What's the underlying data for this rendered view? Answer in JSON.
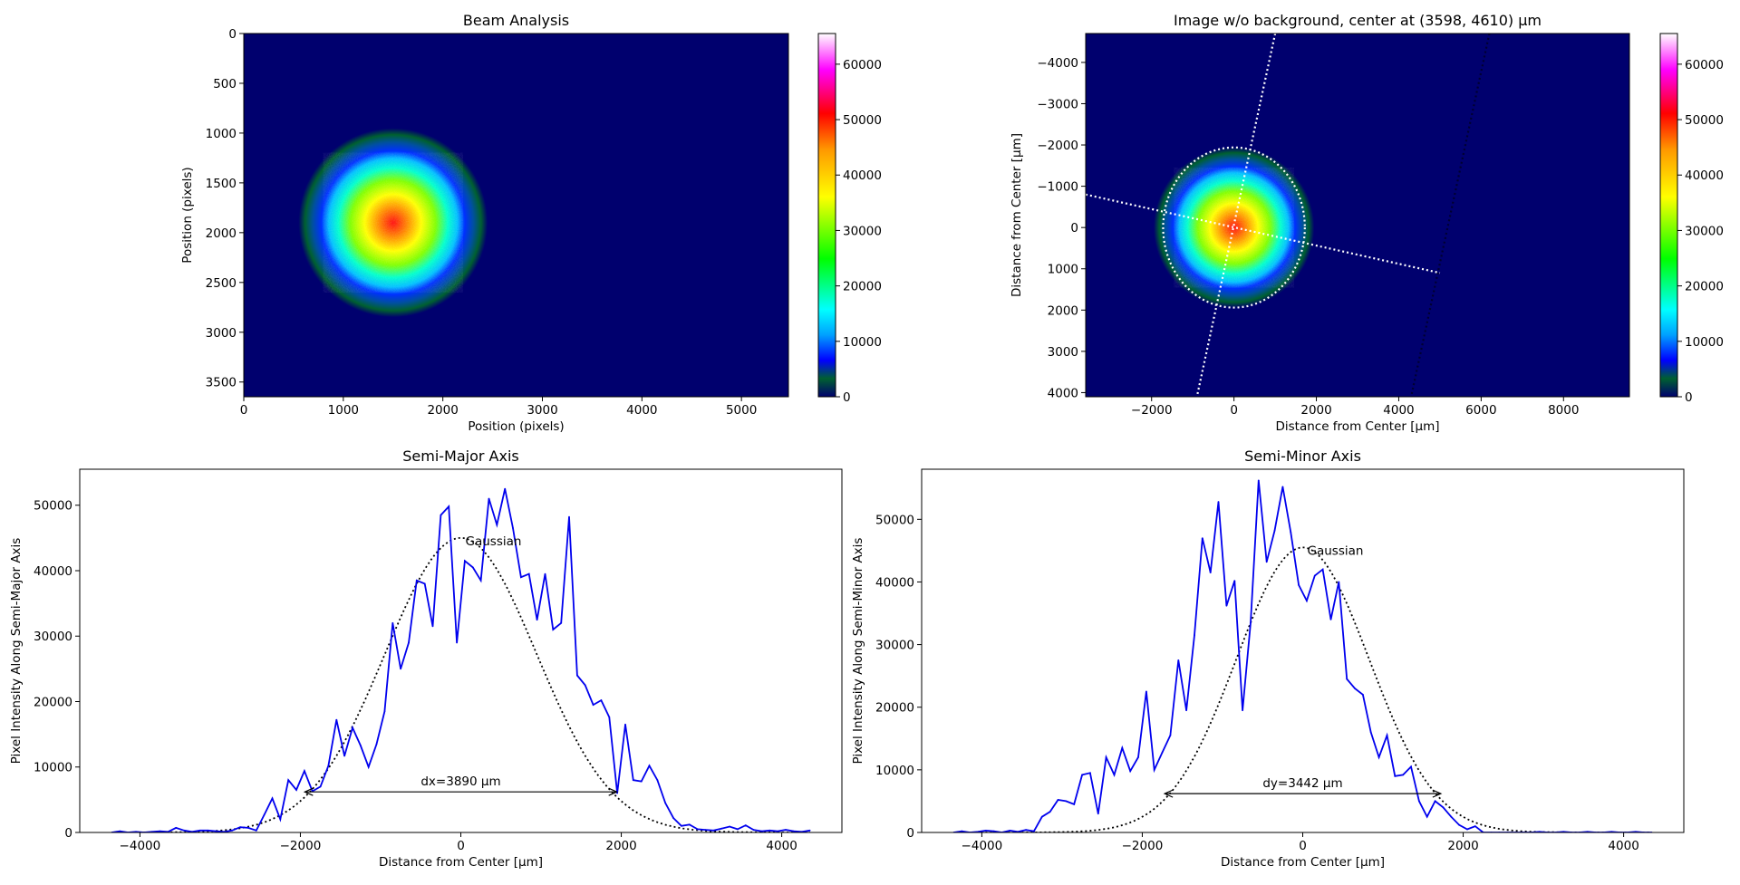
{
  "colors": {
    "profile_line": "#0000ee",
    "gaussian_line": "#000000",
    "image_background": "#00006e",
    "colormap": [
      "#00006e",
      "#006030",
      "#0000ff",
      "#00ffff",
      "#00ff00",
      "#ffff00",
      "#ff9900",
      "#ff0000",
      "#ff00ff",
      "#ffffff"
    ]
  },
  "chart_data": [
    {
      "id": "beam_analysis",
      "type": "heatmap",
      "title": "Beam Analysis",
      "xlabel": "Position (pixels)",
      "ylabel": "Position (pixels)",
      "xlim": [
        0,
        5472
      ],
      "ylim": [
        3648,
        0
      ],
      "xticks": [
        0,
        1000,
        2000,
        3000,
        4000,
        5000
      ],
      "yticks": [
        0,
        500,
        1000,
        1500,
        2000,
        2500,
        3000,
        3500
      ],
      "beam": {
        "center": [
          1500,
          1900
        ],
        "outer_radius": 950,
        "core_radius": 700
      },
      "colorbar": {
        "range": [
          0,
          65535
        ],
        "ticks": [
          0,
          10000,
          20000,
          30000,
          40000,
          50000,
          60000
        ]
      }
    },
    {
      "id": "image_no_background",
      "type": "heatmap",
      "title": "Image w/o background, center at (3598, 4610) µm",
      "xlabel": "Distance from Center [µm]",
      "ylabel": "Distance from Center [µm]",
      "xlim": [
        -3600,
        9600
      ],
      "ylim": [
        4100,
        -4700
      ],
      "xticks": [
        -2000,
        0,
        2000,
        4000,
        6000,
        8000
      ],
      "yticks": [
        -4000,
        -3000,
        -2000,
        -1000,
        0,
        1000,
        2000,
        3000,
        4000
      ],
      "beam": {
        "center": [
          0,
          0
        ],
        "outer_radius": 1950,
        "core_radius": 1450
      },
      "ellipse": {
        "rx": 1720,
        "ry": 1940
      },
      "lines": [
        {
          "from": [
            1000,
            -4700
          ],
          "to": [
            -900,
            4100
          ]
        },
        {
          "from": [
            -3600,
            -800
          ],
          "to": [
            5000,
            1100
          ]
        },
        {
          "from": [
            6200,
            -4700
          ],
          "to": [
            4300,
            4100
          ]
        }
      ],
      "colorbar": {
        "range": [
          0,
          65535
        ],
        "ticks": [
          0,
          10000,
          20000,
          30000,
          40000,
          50000,
          60000
        ]
      }
    },
    {
      "id": "semi_major",
      "type": "line",
      "title": "Semi-Major Axis",
      "xlabel": "Distance from Center [µm]",
      "ylabel": "Pixel Intensity Along Semi-Major Axis",
      "xlim": [
        -4750,
        4750
      ],
      "ylim": [
        0,
        55500
      ],
      "xticks": [
        -4000,
        -2000,
        0,
        2000,
        4000
      ],
      "yticks": [
        0,
        10000,
        20000,
        30000,
        40000,
        50000
      ],
      "x": [
        -4350,
        -4250,
        -4150,
        -4050,
        -3950,
        -3850,
        -3750,
        -3650,
        -3550,
        -3450,
        -3350,
        -3250,
        -3150,
        -3050,
        -2950,
        -2850,
        -2750,
        -2650,
        -2550,
        -2450,
        -2350,
        -2250,
        -2150,
        -2050,
        -1950,
        -1850,
        -1750,
        -1650,
        -1550,
        -1450,
        -1350,
        -1250,
        -1150,
        -1050,
        -950,
        -850,
        -750,
        -650,
        -550,
        -450,
        -350,
        -250,
        -150,
        -50,
        50,
        150,
        250,
        350,
        450,
        550,
        650,
        750,
        850,
        950,
        1050,
        1150,
        1250,
        1350,
        1450,
        1550,
        1650,
        1750,
        1850,
        1950,
        2050,
        2150,
        2250,
        2350,
        2450,
        2550,
        2650,
        2750,
        2850,
        2950,
        3050,
        3150,
        3250,
        3350,
        3450,
        3550,
        3650,
        3750,
        3850,
        3950,
        4050,
        4150,
        4250,
        4350
      ],
      "series": [
        {
          "values": [
            0,
            200,
            0,
            100,
            0,
            100,
            200,
            100,
            700,
            300,
            100,
            300,
            300,
            200,
            100,
            300,
            800,
            700,
            300,
            2700,
            5200,
            2000,
            8000,
            6500,
            9400,
            6300,
            7000,
            10200,
            17200,
            11700,
            16000,
            13300,
            10000,
            13500,
            18500,
            32000,
            25000,
            29000,
            38500,
            38000,
            31500,
            48500,
            49800,
            29000,
            41500,
            40500,
            38500,
            51000,
            47000,
            52500,
            46500,
            39000,
            39500,
            32500,
            39500,
            31000,
            32000,
            48200,
            24000,
            22500,
            19500,
            20200,
            17600,
            6000,
            16500,
            8000,
            7800,
            10200,
            8000,
            4500,
            2200,
            1000,
            1200,
            500,
            400,
            300,
            600,
            900,
            500,
            1100,
            400,
            200,
            300,
            200,
            400,
            200,
            100,
            300
          ]
        }
      ],
      "gaussian": {
        "amplitude": 45000,
        "center": 0,
        "sigma": 945
      },
      "gaussian_label": "Gaussian",
      "annotation": {
        "text": "dx=3890 µm",
        "x1": -1945,
        "x2": 1945,
        "y": 6200
      }
    },
    {
      "id": "semi_minor",
      "type": "line",
      "title": "Semi-Minor Axis",
      "xlabel": "Distance from Center [µm]",
      "ylabel": "Pixel Intensity Along Semi-Minor Axis",
      "xlim": [
        -4750,
        4750
      ],
      "ylim": [
        0,
        58000
      ],
      "xticks": [
        -4000,
        -2000,
        0,
        2000,
        4000
      ],
      "yticks": [
        0,
        10000,
        20000,
        30000,
        40000,
        50000
      ],
      "x": [
        -4350,
        -4250,
        -4150,
        -4050,
        -3950,
        -3850,
        -3750,
        -3650,
        -3550,
        -3450,
        -3350,
        -3250,
        -3150,
        -3050,
        -2950,
        -2850,
        -2750,
        -2650,
        -2550,
        -2450,
        -2350,
        -2250,
        -2150,
        -2050,
        -1950,
        -1850,
        -1750,
        -1650,
        -1550,
        -1450,
        -1350,
        -1250,
        -1150,
        -1050,
        -950,
        -850,
        -750,
        -650,
        -550,
        -450,
        -350,
        -250,
        -150,
        -50,
        50,
        150,
        250,
        350,
        450,
        550,
        650,
        750,
        850,
        950,
        1050,
        1150,
        1250,
        1350,
        1450,
        1550,
        1650,
        1750,
        1850,
        1950,
        2050,
        2150,
        2250,
        2350,
        2450,
        2550,
        2650,
        2750,
        2850,
        2950,
        3050,
        3150,
        3250,
        3350,
        3450,
        3550,
        3650,
        3750,
        3850,
        3950,
        4050,
        4150,
        4250,
        4350
      ],
      "series": [
        {
          "values": [
            0,
            200,
            0,
            100,
            300,
            200,
            0,
            300,
            100,
            400,
            200,
            2500,
            3300,
            5200,
            5000,
            4500,
            9200,
            9500,
            3000,
            12000,
            9200,
            13500,
            9800,
            12000,
            22500,
            10000,
            12800,
            15500,
            27500,
            19500,
            31500,
            47000,
            41500,
            52800,
            36200,
            40200,
            19500,
            33500,
            56200,
            43200,
            48200,
            55200,
            48000,
            39500,
            37000,
            41000,
            42000,
            34000,
            40000,
            24500,
            23000,
            22000,
            16000,
            12000,
            15500,
            9000,
            9200,
            10500,
            5000,
            2500,
            5000,
            4000,
            2500,
            1200,
            500,
            1000,
            0,
            0,
            0,
            0,
            0,
            0,
            0,
            100,
            0,
            0,
            100,
            0,
            0,
            100,
            0,
            0,
            100,
            0,
            0,
            100,
            0,
            0
          ]
        }
      ],
      "gaussian": {
        "amplitude": 45500,
        "center": 0,
        "sigma": 830
      },
      "gaussian_label": "Gaussian",
      "annotation": {
        "text": "dy=3442 µm",
        "x1": -1721,
        "x2": 1721,
        "y": 6200
      }
    }
  ]
}
